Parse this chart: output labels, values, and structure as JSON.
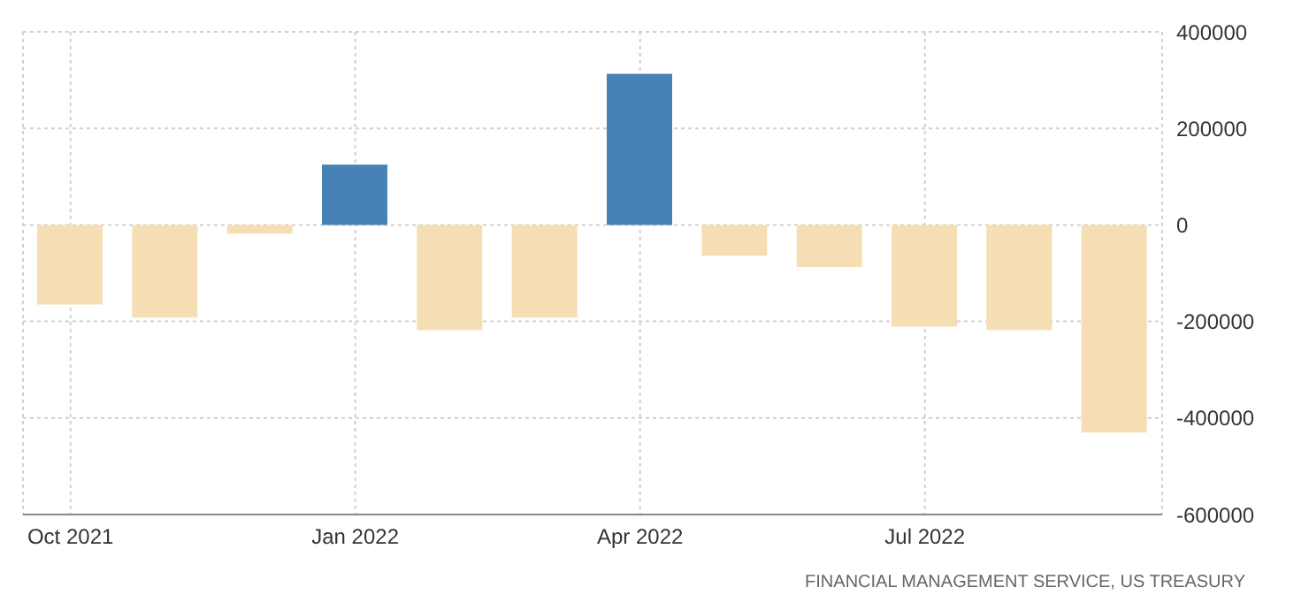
{
  "chart_data": {
    "type": "bar",
    "categories": [
      "Oct 2021",
      null,
      null,
      "Jan 2022",
      null,
      null,
      "Apr 2022",
      null,
      null,
      "Jul 2022",
      null,
      null
    ],
    "values": [
      -165000,
      -192000,
      -18000,
      125000,
      -218000,
      -192000,
      313000,
      -64000,
      -87000,
      -211000,
      -218000,
      -430000
    ],
    "colors": [
      "#f5deb3",
      "#f5deb3",
      "#f5deb3",
      "#4682b4",
      "#f5deb3",
      "#f5deb3",
      "#4682b4",
      "#f5deb3",
      "#f5deb3",
      "#f5deb3",
      "#f5deb3",
      "#f5deb3"
    ],
    "ylim": [
      -600000,
      400000
    ],
    "yticks": [
      -600000,
      -400000,
      -200000,
      0,
      200000,
      400000
    ],
    "grid": true,
    "annotations": [
      "FINANCIAL MANAGEMENT SERVICE, US TREASURY"
    ]
  }
}
